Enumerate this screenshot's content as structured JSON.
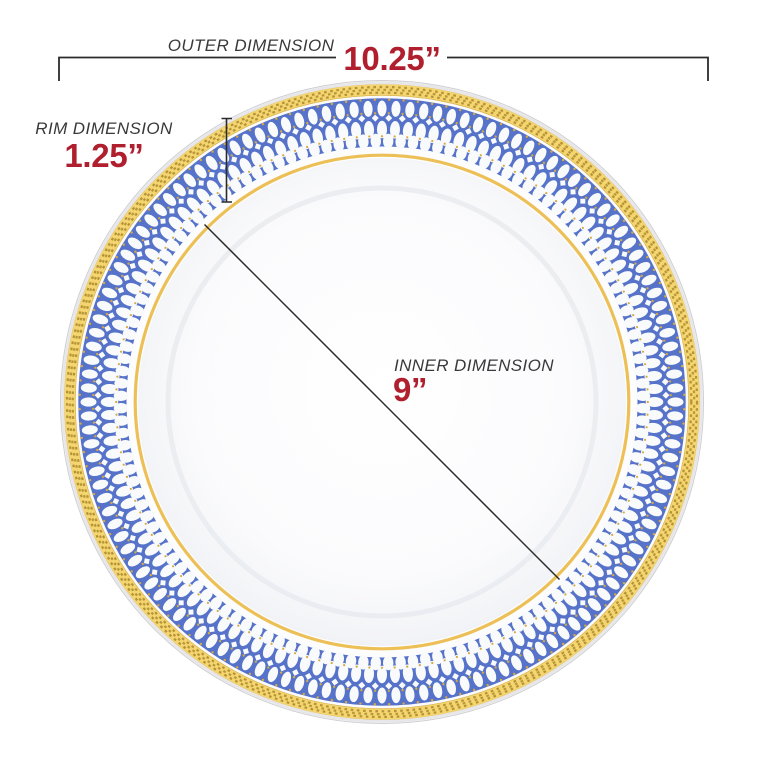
{
  "dimensions": {
    "outer": {
      "label": "OUTER DIMENSION",
      "value": "10.25”"
    },
    "rim": {
      "label": "RIM DIMENSION",
      "value": "1.25”"
    },
    "inner": {
      "label": "INNER DIMENSION",
      "value": "9”"
    }
  },
  "colors": {
    "accent_red": "#B01F2E",
    "label_gray": "#39393B",
    "line_black": "#2B2B2B",
    "rim_gold": "#F4D570",
    "rim_gold_stitch": "#A8872B",
    "rim_gold_hairline": "#DCB957",
    "inner_gold_ring": "#ECC057",
    "gold_dot": "#D9A93E",
    "rim_blue": "#5673C9",
    "pattern_white": "#F8FAFC",
    "plate_white": "#FDFDFE",
    "edge_gray": "#DCDCDF"
  }
}
